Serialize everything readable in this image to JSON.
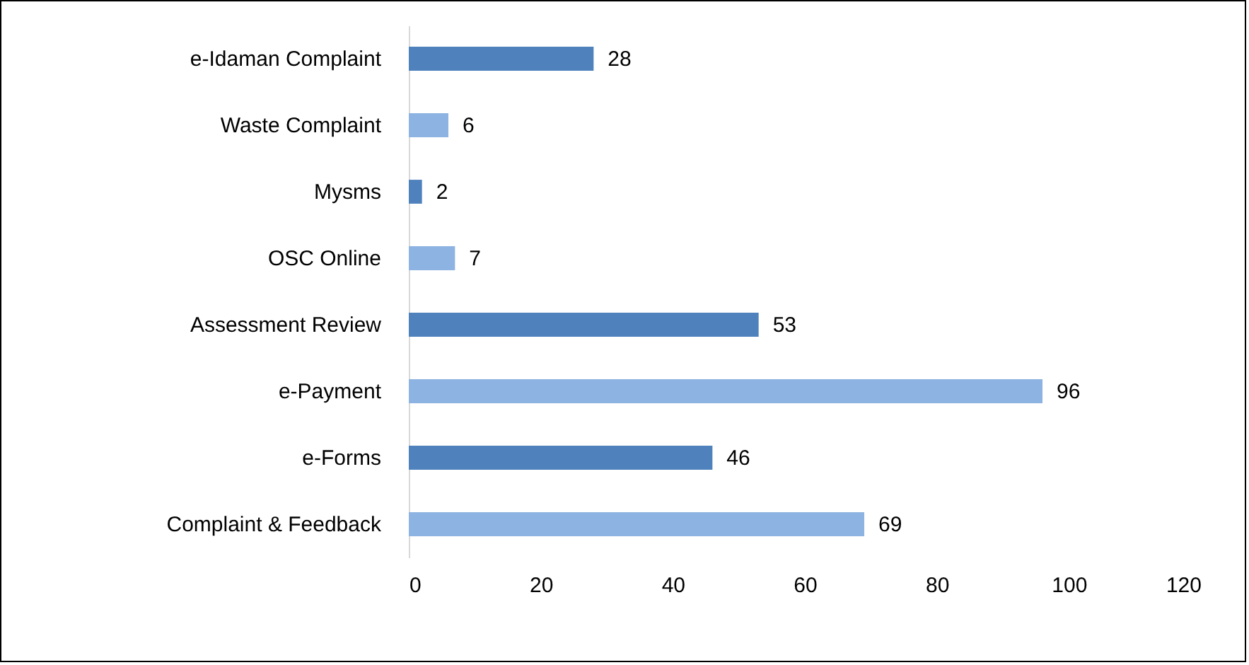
{
  "chart_data": {
    "type": "bar",
    "orientation": "horizontal",
    "categories": [
      "e-Idaman Complaint",
      "Waste Complaint",
      "Mysms",
      "OSC Online",
      "Assessment Review",
      "e-Payment",
      "e-Forms",
      "Complaint & Feedback"
    ],
    "values": [
      28,
      6,
      2,
      7,
      53,
      96,
      46,
      69
    ],
    "colors": [
      "#4f81bd",
      "#8db3e2",
      "#4f81bd",
      "#8db3e2",
      "#4f81bd",
      "#8db3e2",
      "#4f81bd",
      "#8db3e2"
    ],
    "xlim": [
      0,
      120
    ],
    "xticks": [
      0,
      20,
      40,
      60,
      80,
      100,
      120
    ],
    "data_labels": true,
    "grid": false
  }
}
